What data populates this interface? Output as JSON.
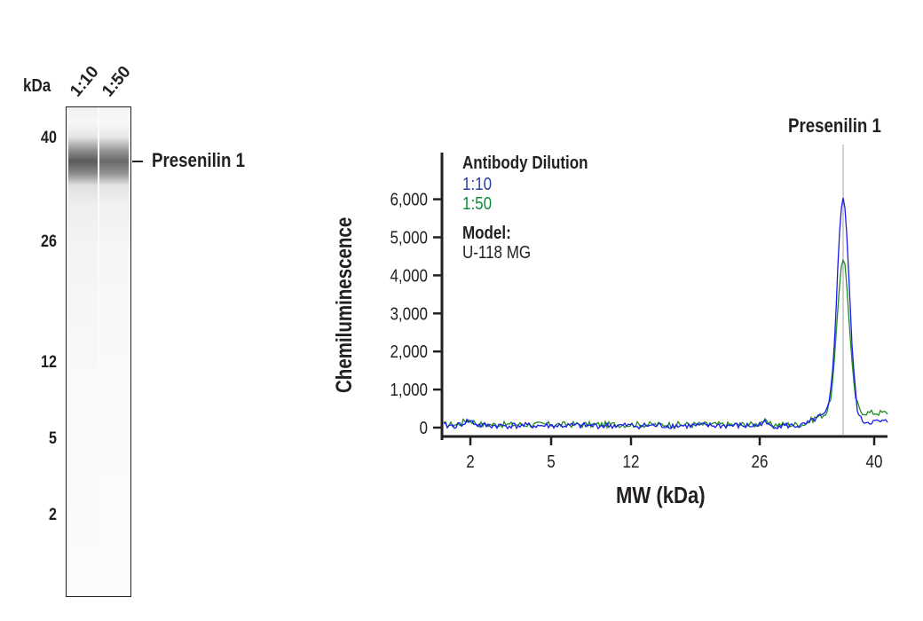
{
  "gel": {
    "unit_label": "kDa",
    "lane_labels": [
      "1:10",
      "1:50"
    ],
    "markers": [
      {
        "label": "40",
        "y": 157
      },
      {
        "label": "26",
        "y": 274
      },
      {
        "label": "12",
        "y": 410
      },
      {
        "label": "5",
        "y": 496
      },
      {
        "label": "2",
        "y": 582
      }
    ],
    "band_label": "Presenilin 1"
  },
  "chart_data": {
    "type": "line",
    "title": "",
    "xlabel": "MW (kDa)",
    "ylabel": "Chemiluminescence",
    "x_tick_labels": [
      "2",
      "5",
      "12",
      "26",
      "40"
    ],
    "y_tick_labels": [
      "0",
      "1,000",
      "2,000",
      "3,000",
      "4,000",
      "5,000",
      "6,000"
    ],
    "ylim": [
      -300,
      7000
    ],
    "grid": false,
    "legend": {
      "title": "Antibody Dilution",
      "entries": [
        {
          "label": "1:10",
          "color": "#2b3f9a"
        },
        {
          "label": "1:50",
          "color": "#138a3e"
        }
      ],
      "model_title": "Model:",
      "model_value": "U-118 MG",
      "position": "top-left"
    },
    "annotation": {
      "label": "Presenilin 1",
      "x_kda": 35
    },
    "series": [
      {
        "name": "1:10",
        "color": "#1a1aee",
        "peak_kda": 35,
        "peak_value": 5800,
        "baseline": 50
      },
      {
        "name": "1:50",
        "color": "#1f8a1f",
        "peak_kda": 35,
        "peak_value": 4200,
        "baseline": 80
      }
    ]
  }
}
